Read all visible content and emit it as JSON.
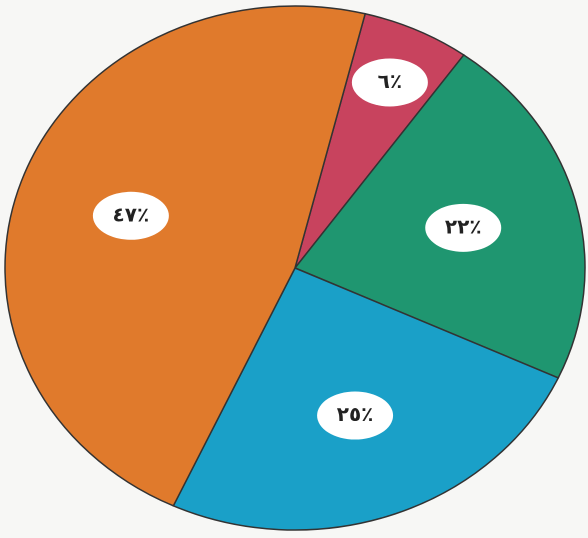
{
  "chart_data": {
    "type": "pie",
    "categories": [
      "red",
      "green",
      "blue",
      "orange"
    ],
    "values": [
      6,
      22,
      25,
      47
    ],
    "value_labels": [
      "٦٪",
      "٢٢٪",
      "٢٥٪",
      "٤٧٪"
    ],
    "colors": [
      "#c8435e",
      "#1f9670",
      "#1aa0c8",
      "#e07a2c"
    ],
    "start_angle": 14
  }
}
